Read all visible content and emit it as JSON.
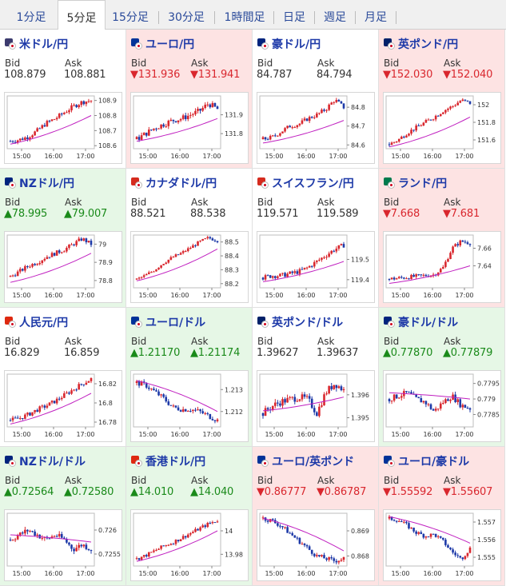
{
  "tabs": [
    {
      "label": "1分足",
      "active": false
    },
    {
      "label": "5分足",
      "active": true
    },
    {
      "label": "15分足",
      "active": false
    },
    {
      "label": "30分足",
      "active": false
    },
    {
      "label": "1時間足",
      "active": false
    },
    {
      "label": "日足",
      "active": false
    },
    {
      "label": "週足",
      "active": false
    },
    {
      "label": "月足",
      "active": false
    }
  ],
  "labels": {
    "bid": "Bid",
    "ask": "Ask"
  },
  "colors": {
    "up_bg": "#e6f7e6",
    "down_bg": "#fde3e3",
    "up_text": "#1a8a1a",
    "down_text": "#d9272e",
    "pair_text": "#1e3aa8",
    "candle_up": "#d9272e",
    "candle_down": "#1e3aa8",
    "ma": "#c020c0"
  },
  "cards": [
    {
      "pair": "米ドル/円",
      "dir": "flat",
      "flag_a": "#3c3b6e",
      "bid": "108.879",
      "ask": "108.881",
      "chart": {
        "x_ticks": [
          "15:00",
          "16:00",
          "17:00"
        ],
        "y_ticks": [
          "108.9",
          "108.8",
          "108.7",
          "108.6"
        ],
        "y_tick_values": [
          108.9,
          108.8,
          108.7,
          108.6
        ],
        "ylim": [
          108.58,
          108.93
        ],
        "trend": [
          108.63,
          108.64,
          108.66,
          108.7,
          108.75,
          108.78,
          108.82,
          108.86,
          108.89,
          108.9
        ],
        "noise": 0.02,
        "ma_start": 108.61,
        "ma_end": 108.8
      }
    },
    {
      "pair": "ユーロ/円",
      "dir": "down",
      "flag_a": "#003399",
      "bid": "▼131.936",
      "ask": "▼131.941",
      "chart": {
        "x_ticks": [
          "15:00",
          "16:00",
          "17:00"
        ],
        "y_ticks": [
          "131.9",
          "131.8"
        ],
        "y_tick_values": [
          131.9,
          131.8
        ],
        "ylim": [
          131.72,
          132.0
        ],
        "trend": [
          131.77,
          131.8,
          131.83,
          131.85,
          131.87,
          131.88,
          131.9,
          131.92,
          131.96,
          131.93
        ],
        "noise": 0.02,
        "ma_start": 131.76,
        "ma_end": 131.88
      }
    },
    {
      "pair": "豪ドル/円",
      "dir": "flat",
      "flag_a": "#00247d",
      "bid": "84.787",
      "ask": "84.794",
      "chart": {
        "x_ticks": [
          "15:00",
          "16:00",
          "17:00"
        ],
        "y_ticks": [
          "84.8",
          "84.7",
          "84.6"
        ],
        "y_tick_values": [
          84.8,
          84.7,
          84.6
        ],
        "ylim": [
          84.58,
          84.86
        ],
        "trend": [
          84.63,
          84.64,
          84.67,
          84.7,
          84.71,
          84.74,
          84.76,
          84.79,
          84.84,
          84.8
        ],
        "noise": 0.015,
        "ma_start": 84.61,
        "ma_end": 84.73
      }
    },
    {
      "pair": "英ポンド/円",
      "dir": "down",
      "flag_a": "#012169",
      "bid": "▼152.030",
      "ask": "▼152.040",
      "chart": {
        "x_ticks": [
          "15:00",
          "16:00",
          "17:00"
        ],
        "y_ticks": [
          "152",
          "151.8",
          "151.6"
        ],
        "y_tick_values": [
          152,
          151.8,
          151.6
        ],
        "ylim": [
          151.5,
          152.1
        ],
        "trend": [
          151.55,
          151.6,
          151.68,
          151.74,
          151.8,
          151.86,
          151.93,
          151.98,
          152.05,
          152.02
        ],
        "noise": 0.03,
        "ma_start": 151.52,
        "ma_end": 151.86
      }
    },
    {
      "pair": "NZドル/円",
      "dir": "up",
      "flag_a": "#00247d",
      "bid": "▲78.995",
      "ask": "▲79.007",
      "chart": {
        "x_ticks": [
          "15:00",
          "16:00",
          "17:00"
        ],
        "y_ticks": [
          "79",
          "78.9",
          "78.8"
        ],
        "y_tick_values": [
          79,
          78.9,
          78.8
        ],
        "ylim": [
          78.76,
          79.05
        ],
        "trend": [
          78.82,
          78.85,
          78.88,
          78.9,
          78.93,
          78.95,
          78.97,
          79.0,
          79.03,
          79.0
        ],
        "noise": 0.015,
        "ma_start": 78.79,
        "ma_end": 78.95
      }
    },
    {
      "pair": "カナダドル/円",
      "dir": "flat",
      "flag_a": "#d52b1e",
      "bid": "88.521",
      "ask": "88.538",
      "chart": {
        "x_ticks": [
          "15:00",
          "16:00",
          "17:00"
        ],
        "y_ticks": [
          "88.5",
          "88.4",
          "88.3",
          "88.2"
        ],
        "y_tick_values": [
          88.5,
          88.4,
          88.3,
          88.2
        ],
        "ylim": [
          88.17,
          88.55
        ],
        "trend": [
          88.23,
          88.26,
          88.3,
          88.35,
          88.39,
          88.42,
          88.46,
          88.5,
          88.53,
          88.51
        ],
        "noise": 0.015,
        "ma_start": 88.22,
        "ma_end": 88.45
      }
    },
    {
      "pair": "スイスフラン/円",
      "dir": "flat",
      "flag_a": "#d52b1e",
      "bid": "119.571",
      "ask": "119.589",
      "chart": {
        "x_ticks": [
          "15:00",
          "16:00",
          "17:00"
        ],
        "y_ticks": [
          "119.5",
          "119.4"
        ],
        "y_tick_values": [
          119.5,
          119.4
        ],
        "ylim": [
          119.36,
          119.62
        ],
        "trend": [
          119.41,
          119.42,
          119.42,
          119.43,
          119.44,
          119.46,
          119.49,
          119.52,
          119.55,
          119.57
        ],
        "noise": 0.015,
        "ma_start": 119.39,
        "ma_end": 119.49
      }
    },
    {
      "pair": "ランド/円",
      "dir": "down",
      "flag_a": "#007a4d",
      "bid": "▼7.668",
      "ask": "▼7.681",
      "chart": {
        "x_ticks": [
          "15:00",
          "16:00",
          "17:00"
        ],
        "y_ticks": [
          "7.66",
          "7.64"
        ],
        "y_tick_values": [
          7.66,
          7.64
        ],
        "ylim": [
          7.615,
          7.675
        ],
        "trend": [
          7.625,
          7.626,
          7.627,
          7.628,
          7.629,
          7.63,
          7.638,
          7.66,
          7.668,
          7.666
        ],
        "noise": 0.003,
        "ma_start": 7.62,
        "ma_end": 7.64
      }
    },
    {
      "pair": "人民元/円",
      "dir": "flat",
      "flag_a": "#de2910",
      "bid": "16.829",
      "ask": "16.859",
      "chart": {
        "x_ticks": [
          "15:00",
          "16:00",
          "17:00"
        ],
        "y_ticks": [
          "16.82",
          "16.8",
          "16.78"
        ],
        "y_tick_values": [
          16.82,
          16.8,
          16.78
        ],
        "ylim": [
          16.775,
          16.83
        ],
        "trend": [
          16.782,
          16.784,
          16.788,
          16.793,
          16.797,
          16.802,
          16.808,
          16.814,
          16.82,
          16.825
        ],
        "noise": 0.003,
        "ma_start": 16.778,
        "ma_end": 16.81
      }
    },
    {
      "pair": "ユーロ/ドル",
      "dir": "up",
      "flag_a": "#003399",
      "bid": "▲1.21170",
      "ask": "▲1.21174",
      "chart": {
        "x_ticks": [
          "15:00",
          "16:00",
          "17:00"
        ],
        "y_ticks": [
          "1.213",
          "1.212"
        ],
        "y_tick_values": [
          1.213,
          1.212
        ],
        "ylim": [
          1.2113,
          1.2137
        ],
        "trend": [
          1.2133,
          1.2132,
          1.2129,
          1.2126,
          1.2122,
          1.2121,
          1.2121,
          1.212,
          1.2118,
          1.2116
        ],
        "noise": 0.00015,
        "ma_start": 1.2134,
        "ma_end": 1.212
      }
    },
    {
      "pair": "英ポンド/ドル",
      "dir": "flat",
      "flag_a": "#012169",
      "bid": "1.39627",
      "ask": "1.39637",
      "chart": {
        "x_ticks": [
          "15:00",
          "16:00",
          "17:00"
        ],
        "y_ticks": [
          "1.396",
          "1.395"
        ],
        "y_tick_values": [
          1.396,
          1.395
        ],
        "ylim": [
          1.3946,
          1.3969
        ],
        "trend": [
          1.3952,
          1.3955,
          1.3957,
          1.3958,
          1.3959,
          1.3958,
          1.3952,
          1.3961,
          1.3965,
          1.3962
        ],
        "noise": 0.0002,
        "ma_start": 1.3953,
        "ma_end": 1.3959
      }
    },
    {
      "pair": "豪ドル/ドル",
      "dir": "up",
      "flag_a": "#00247d",
      "bid": "▲0.77870",
      "ask": "▲0.77879",
      "chart": {
        "x_ticks": [
          "15:00",
          "16:00",
          "17:00"
        ],
        "y_ticks": [
          "0.7795",
          "0.779",
          "0.7785"
        ],
        "y_tick_values": [
          0.7795,
          0.779,
          0.7785
        ],
        "ylim": [
          0.7781,
          0.7798
        ],
        "trend": [
          0.779,
          0.7791,
          0.7792,
          0.779,
          0.7789,
          0.7786,
          0.7789,
          0.7791,
          0.7788,
          0.7787
        ],
        "noise": 0.00012,
        "ma_start": 0.7792,
        "ma_end": 0.779
      }
    },
    {
      "pair": "NZドル/ドル",
      "dir": "up",
      "flag_a": "#00247d",
      "bid": "▲0.72564",
      "ask": "▲0.72580",
      "chart": {
        "x_ticks": [
          "15:00",
          "16:00",
          "17:00"
        ],
        "y_ticks": [
          "0.726",
          "0.7255"
        ],
        "y_tick_values": [
          0.726,
          0.7255
        ],
        "ylim": [
          0.72525,
          0.72635
        ],
        "trend": [
          0.7258,
          0.7259,
          0.726,
          0.7259,
          0.7258,
          0.7259,
          0.7258,
          0.7256,
          0.7257,
          0.7256
        ],
        "noise": 8e-05,
        "ma_start": 0.7259,
        "ma_end": 0.72575
      }
    },
    {
      "pair": "香港ドル/円",
      "dir": "up",
      "flag_a": "#de2910",
      "bid": "▲14.010",
      "ask": "▲14.040",
      "chart": {
        "x_ticks": [
          "15:00",
          "16:00",
          "17:00"
        ],
        "y_ticks": [
          "14",
          "13.98"
        ],
        "y_tick_values": [
          14,
          13.98
        ],
        "ylim": [
          13.97,
          14.015
        ],
        "trend": [
          13.976,
          13.979,
          13.983,
          13.987,
          13.99,
          13.994,
          13.998,
          14.002,
          14.006,
          14.009
        ],
        "noise": 0.002,
        "ma_start": 13.974,
        "ma_end": 14.0
      }
    },
    {
      "pair": "ユーロ/英ポンド",
      "dir": "down",
      "flag_a": "#003399",
      "bid": "▼0.86777",
      "ask": "▼0.86787",
      "chart": {
        "x_ticks": [
          "15:00",
          "16:00",
          "17:00"
        ],
        "y_ticks": [
          "0.869",
          "0.868"
        ],
        "y_tick_values": [
          0.869,
          0.868
        ],
        "ylim": [
          0.8676,
          0.8697
        ],
        "trend": [
          0.8695,
          0.8694,
          0.8692,
          0.8689,
          0.8686,
          0.8683,
          0.868,
          0.8679,
          0.8678,
          0.8679
        ],
        "noise": 0.00012,
        "ma_start": 0.8695,
        "ma_end": 0.8682
      }
    },
    {
      "pair": "ユーロ/豪ドル",
      "dir": "down",
      "flag_a": "#003399",
      "bid": "▼1.55592",
      "ask": "▼1.55607",
      "chart": {
        "x_ticks": [
          "15:00",
          "16:00",
          "17:00"
        ],
        "y_ticks": [
          "1.557",
          "1.556",
          "1.555"
        ],
        "y_tick_values": [
          1.557,
          1.556,
          1.555
        ],
        "ylim": [
          1.5545,
          1.5575
        ],
        "trend": [
          1.5572,
          1.5571,
          1.5568,
          1.5564,
          1.5562,
          1.5563,
          1.5559,
          1.5553,
          1.5549,
          1.5555
        ],
        "noise": 0.00015,
        "ma_start": 1.5573,
        "ma_end": 1.5558
      }
    }
  ]
}
